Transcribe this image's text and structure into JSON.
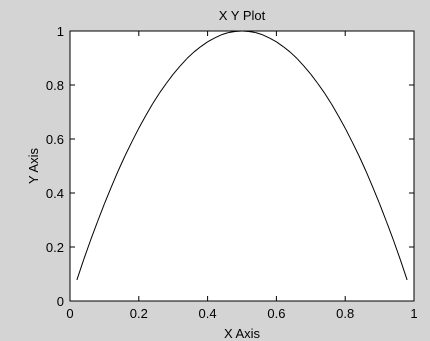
{
  "chart_data": {
    "type": "line",
    "title": "X Y Plot",
    "xlabel": "X Axis",
    "ylabel": "Y Axis",
    "xlim": [
      0,
      1
    ],
    "ylim": [
      0,
      1
    ],
    "x_ticks": [
      0,
      0.2,
      0.4,
      0.6,
      0.8,
      1
    ],
    "y_ticks": [
      0,
      0.2,
      0.4,
      0.6,
      0.8,
      1
    ],
    "x_tick_labels": [
      "0",
      "0.2",
      "0.4",
      "0.6",
      "0.8",
      "1"
    ],
    "y_tick_labels": [
      "0",
      "0.2",
      "0.4",
      "0.6",
      "0.8",
      "1"
    ],
    "grid": false,
    "line_color": "#000000",
    "background_color": "#ffffff",
    "figure_color": "#d4d4d4",
    "x_series": [
      0.02,
      0.04,
      0.06,
      0.08,
      0.1,
      0.12,
      0.14,
      0.16,
      0.18,
      0.2,
      0.22,
      0.24,
      0.26,
      0.28,
      0.3,
      0.32,
      0.34,
      0.36,
      0.38,
      0.4,
      0.42,
      0.44,
      0.46,
      0.48,
      0.5,
      0.52,
      0.54,
      0.56,
      0.58,
      0.6,
      0.62,
      0.64,
      0.66,
      0.68,
      0.7,
      0.72,
      0.74,
      0.76,
      0.78,
      0.8,
      0.82,
      0.84,
      0.86,
      0.88,
      0.9,
      0.92,
      0.94,
      0.96,
      0.98
    ],
    "y_series": [
      0.078,
      0.154,
      0.226,
      0.294,
      0.36,
      0.422,
      0.482,
      0.538,
      0.59,
      0.64,
      0.686,
      0.73,
      0.77,
      0.806,
      0.84,
      0.87,
      0.898,
      0.922,
      0.942,
      0.96,
      0.974,
      0.986,
      0.994,
      0.998,
      1.0,
      0.998,
      0.994,
      0.986,
      0.974,
      0.96,
      0.942,
      0.922,
      0.898,
      0.87,
      0.84,
      0.806,
      0.77,
      0.73,
      0.686,
      0.64,
      0.59,
      0.538,
      0.482,
      0.422,
      0.36,
      0.294,
      0.226,
      0.154,
      0.078
    ]
  }
}
